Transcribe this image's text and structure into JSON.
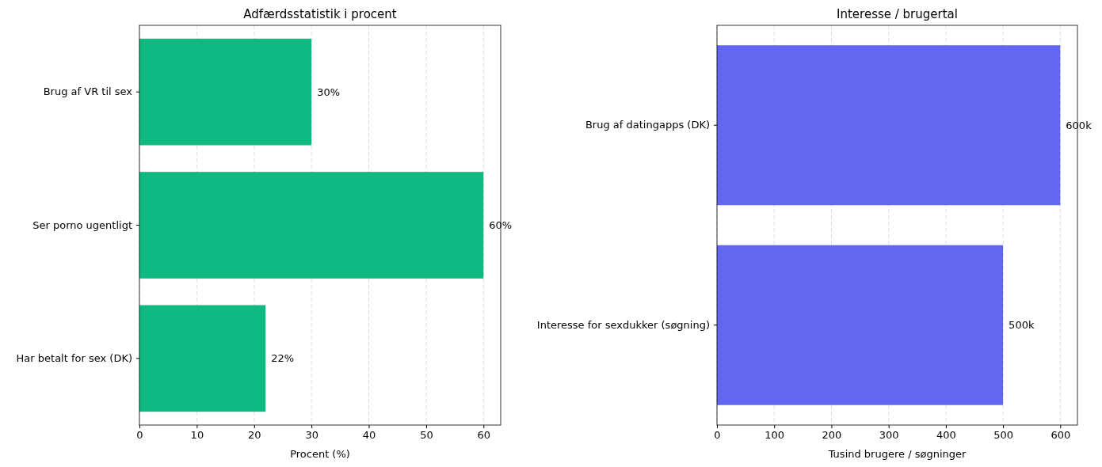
{
  "chart_data": [
    {
      "type": "bar",
      "orientation": "horizontal",
      "title": "Adfærdsstatistik i procent",
      "xlabel": "Procent (%)",
      "categories": [
        "Brug af VR til sex",
        "Ser porno ugentligt",
        "Har betalt for sex (DK)"
      ],
      "values": [
        30,
        60,
        22
      ],
      "value_labels": [
        "30%",
        "60%",
        "22%"
      ],
      "color": "#10b981",
      "xlim": [
        0,
        63
      ],
      "xticks": [
        0,
        10,
        20,
        30,
        40,
        50,
        60
      ],
      "grid": "x",
      "line_style": "dashed"
    },
    {
      "type": "bar",
      "orientation": "horizontal",
      "title": "Interesse / brugertal",
      "xlabel": "Tusind brugere / søgninger",
      "categories": [
        "Brug af datingapps (DK)",
        "Interesse for sexdukker (søgning)"
      ],
      "values": [
        600,
        500
      ],
      "value_labels": [
        "600k",
        "500k"
      ],
      "color": "#6366f1",
      "xlim": [
        0,
        630
      ],
      "xticks": [
        0,
        100,
        200,
        300,
        400,
        500,
        600
      ],
      "grid": "x",
      "line_style": "dashed"
    }
  ]
}
